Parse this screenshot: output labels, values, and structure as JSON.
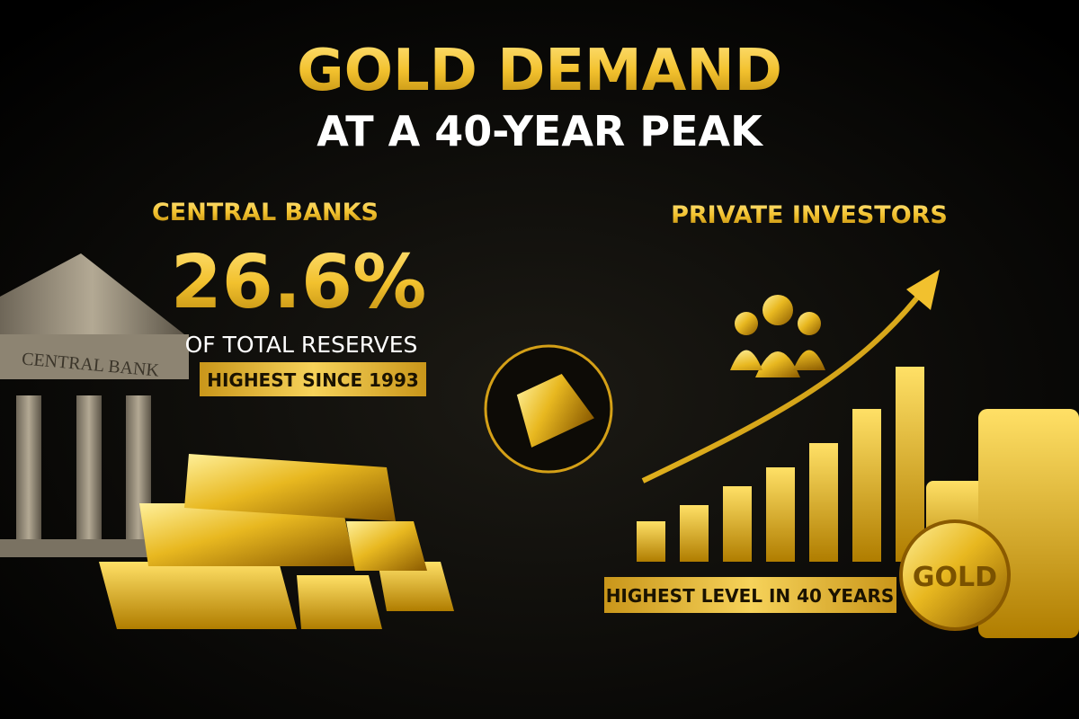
{
  "header": {
    "title": "GOLD DEMAND",
    "subtitle": "AT A 40-YEAR PEAK"
  },
  "left": {
    "heading": "CENTRAL BANKS",
    "stat": "26.6%",
    "stat_caption": "OF TOTAL RESERVES",
    "badge": "HIGHEST SINCE 1993",
    "building_sign": "CENTRAL BANK"
  },
  "right": {
    "heading": "PRIVATE INVESTORS",
    "badge": "HIGHEST LEVEL IN 40 YEARS",
    "coin_label": "GOLD"
  }
}
